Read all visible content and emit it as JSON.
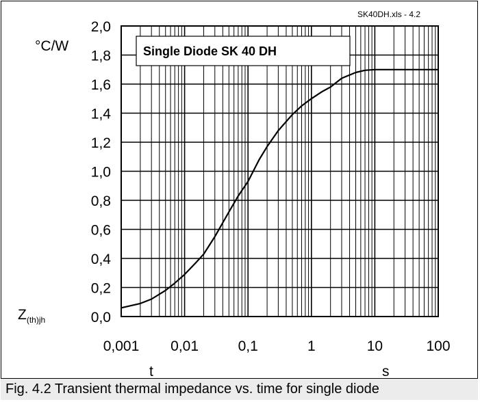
{
  "file_label": "SK40DH.xls - 4.2",
  "caption": "Fig. 4.2 Transient thermal impedance vs. time for single diode",
  "chart_data": {
    "type": "line",
    "title": "Single Diode SK 40 DH",
    "ylabel_main": "Z",
    "ylabel_sub": "(th)jh",
    "yunit": "°C/W",
    "xlabel": "t",
    "xunit": "s",
    "xscale": "log",
    "xlim": [
      0.001,
      100
    ],
    "ylim": [
      0.0,
      2.0
    ],
    "grid": true,
    "xticks": [
      "0,001",
      "0,01",
      "0,1",
      "1",
      "10",
      "100"
    ],
    "yticks": [
      "0,0",
      "0,2",
      "0,4",
      "0,6",
      "0,8",
      "1,0",
      "1,2",
      "1,4",
      "1,6",
      "1,8",
      "2,0"
    ],
    "series": [
      {
        "x": [
          0.001,
          0.002,
          0.003,
          0.005,
          0.007,
          0.01,
          0.015,
          0.02,
          0.03,
          0.05,
          0.07,
          0.1,
          0.15,
          0.2,
          0.3,
          0.5,
          0.7,
          1,
          1.5,
          2,
          3,
          5,
          7,
          10,
          20,
          50,
          100
        ],
        "y": [
          0.06,
          0.09,
          0.12,
          0.18,
          0.23,
          0.29,
          0.37,
          0.43,
          0.55,
          0.72,
          0.83,
          0.93,
          1.08,
          1.17,
          1.28,
          1.39,
          1.45,
          1.5,
          1.55,
          1.58,
          1.64,
          1.68,
          1.695,
          1.7,
          1.7,
          1.7,
          1.7
        ]
      }
    ]
  }
}
